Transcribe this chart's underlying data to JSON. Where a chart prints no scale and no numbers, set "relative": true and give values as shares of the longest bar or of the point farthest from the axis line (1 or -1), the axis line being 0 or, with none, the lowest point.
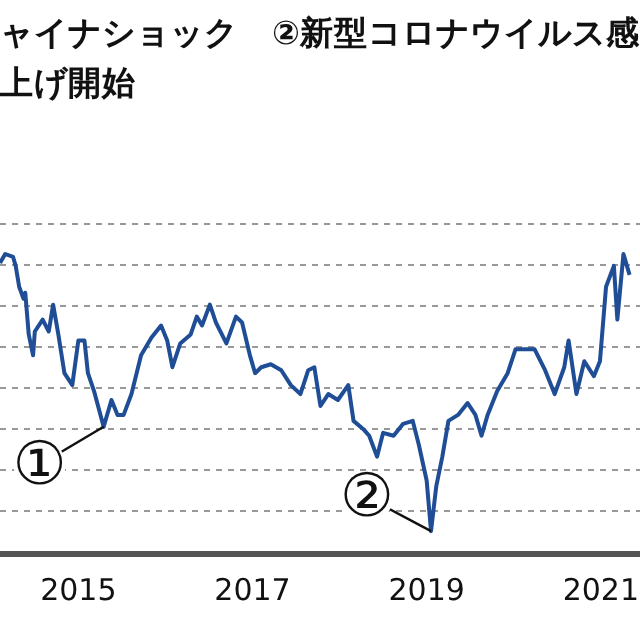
{
  "chart_data": {
    "type": "line",
    "relative": true,
    "title": "ャイナショック　②新型コロナウイルス感",
    "subtitle": "上げ開始",
    "grid": "y",
    "color": "#1f4e96",
    "x": [
      2014.1,
      2014.16,
      2014.25,
      2014.28,
      2014.32,
      2014.37,
      2014.39,
      2014.43,
      2014.48,
      2014.5,
      2014.59,
      2014.66,
      2014.71,
      2014.77,
      2014.84,
      2014.93,
      2015.0,
      2015.07,
      2015.11,
      2015.18,
      2015.29,
      2015.38,
      2015.45,
      2015.52,
      2015.61,
      2015.72,
      2015.84,
      2015.95,
      2016.02,
      2016.08,
      2016.17,
      2016.29,
      2016.36,
      2016.42,
      2016.51,
      2016.58,
      2016.7,
      2016.81,
      2016.88,
      2016.97,
      2017.03,
      2017.1,
      2017.21,
      2017.33,
      2017.44,
      2017.55,
      2017.64,
      2017.71,
      2017.78,
      2017.87,
      2017.98,
      2018.1,
      2018.16,
      2018.28,
      2018.34,
      2018.43,
      2018.5,
      2018.62,
      2018.73,
      2018.84,
      2018.91,
      2019.0,
      2019.05,
      2019.11,
      2019.18,
      2019.25,
      2019.36,
      2019.47,
      2019.56,
      2019.63,
      2019.7,
      2019.81,
      2019.93,
      2020.02,
      2020.13,
      2020.24,
      2020.36,
      2020.47,
      2020.58,
      2020.63,
      2020.72,
      2020.81,
      2020.92,
      2020.99,
      2021.06,
      2021.15,
      2021.19,
      2021.26,
      2021.33
    ],
    "values": [
      0.97,
      1,
      0.99,
      0.96,
      0.89,
      0.85,
      0.87,
      0.73,
      0.66,
      0.74,
      0.78,
      0.74,
      0.83,
      0.73,
      0.6,
      0.56,
      0.71,
      0.71,
      0.6,
      0.54,
      0.42,
      0.51,
      0.46,
      0.46,
      0.53,
      0.66,
      0.72,
      0.76,
      0.71,
      0.62,
      0.7,
      0.73,
      0.79,
      0.76,
      0.83,
      0.77,
      0.7,
      0.79,
      0.77,
      0.66,
      0.6,
      0.62,
      0.63,
      0.61,
      0.56,
      0.53,
      0.61,
      0.62,
      0.49,
      0.53,
      0.51,
      0.56,
      0.44,
      0.41,
      0.39,
      0.32,
      0.4,
      0.39,
      0.43,
      0.44,
      0.36,
      0.24,
      0.07,
      0.22,
      0.32,
      0.44,
      0.46,
      0.5,
      0.46,
      0.39,
      0.46,
      0.54,
      0.6,
      0.68,
      0.68,
      0.68,
      0.61,
      0.53,
      0.62,
      0.71,
      0.53,
      0.64,
      0.59,
      0.64,
      0.89,
      0.96,
      0.78,
      1,
      0.93
    ],
    "xlim": [
      2014.1,
      2021.45
    ],
    "xticks": [
      2015,
      2017,
      2019,
      2021
    ],
    "annotations": [
      {
        "text": "①",
        "x": 2015.29,
        "y": 0.42
      },
      {
        "text": "②",
        "x": 2019.05,
        "y": 0.07
      }
    ]
  }
}
